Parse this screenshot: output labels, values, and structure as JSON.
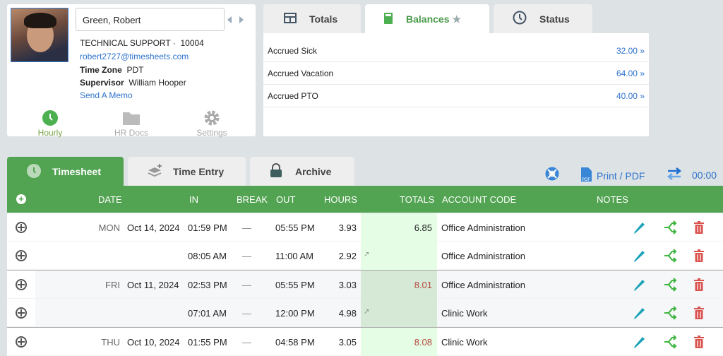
{
  "employee": {
    "name": "Green, Robert",
    "department": "TECHNICAL SUPPORT ·",
    "id": "10004",
    "email": "robert2727@timesheets.com",
    "timezone_label": "Time Zone",
    "timezone": "PDT",
    "supervisor_label": "Supervisor",
    "supervisor": "William Hooper",
    "memo_link": "Send A Memo"
  },
  "profile_nav": [
    {
      "label": "Hourly",
      "icon": "clock-icon",
      "active": true
    },
    {
      "label": "HR Docs",
      "icon": "folder-icon"
    },
    {
      "label": "Settings",
      "icon": "gear-icon"
    }
  ],
  "top_tabs": [
    {
      "label": "Totals",
      "icon": "table-icon"
    },
    {
      "label": "Balances",
      "icon": "calculator-icon",
      "active": true
    },
    {
      "label": "Status",
      "icon": "clock-icon"
    }
  ],
  "balances": [
    {
      "label": "Accrued Sick",
      "value": "32.00 »"
    },
    {
      "label": "Accrued Vacation",
      "value": "64.00 »"
    },
    {
      "label": "Accrued PTO",
      "value": "40.00 »"
    }
  ],
  "sheet_tabs": [
    {
      "label": "Timesheet",
      "icon": "clock-icon",
      "active": true
    },
    {
      "label": "Time Entry",
      "icon": "layers-plus-icon"
    },
    {
      "label": "Archive",
      "icon": "lock-icon"
    }
  ],
  "toolbar": {
    "print_label": "Print / PDF",
    "timer": "00:00"
  },
  "columns": {
    "date": "DATE",
    "in": "IN",
    "break": "BREAK",
    "out": "OUT",
    "hours": "HOURS",
    "totals": "TOTALS",
    "account": "ACCOUNT CODE",
    "notes": "NOTES"
  },
  "rows": [
    {
      "day": "MON",
      "date": "Oct 14, 2024",
      "in": "01:59 PM",
      "break": "—",
      "out": "05:55 PM",
      "hours": "3.93",
      "total": "6.85",
      "account": "Office Administration",
      "group": 0
    },
    {
      "day": "",
      "date": "",
      "in": "08:05 AM",
      "break": "—",
      "out": "11:00 AM",
      "hours": "2.92",
      "total": "↗",
      "account": "Office Administration",
      "group": 0
    },
    {
      "day": "FRI",
      "date": "Oct 11, 2024",
      "in": "02:53 PM",
      "break": "—",
      "out": "05:55 PM",
      "hours": "3.03",
      "total": "8.01",
      "account": "Office Administration",
      "group": 1
    },
    {
      "day": "",
      "date": "",
      "in": "07:01 AM",
      "break": "—",
      "out": "12:00 PM",
      "hours": "4.98",
      "total": "↗",
      "account": "Clinic Work",
      "group": 1
    },
    {
      "day": "THU",
      "date": "Oct 10, 2024",
      "in": "01:55 PM",
      "break": "—",
      "out": "04:58 PM",
      "hours": "3.05",
      "total": "8.08",
      "account": "Clinic Work",
      "group": 2
    }
  ],
  "colors": {
    "green": "#52a352",
    "link": "#2f73cc",
    "over_total": "#b5473e",
    "delete": "#d9534f",
    "edit": "#1ba3b8"
  }
}
